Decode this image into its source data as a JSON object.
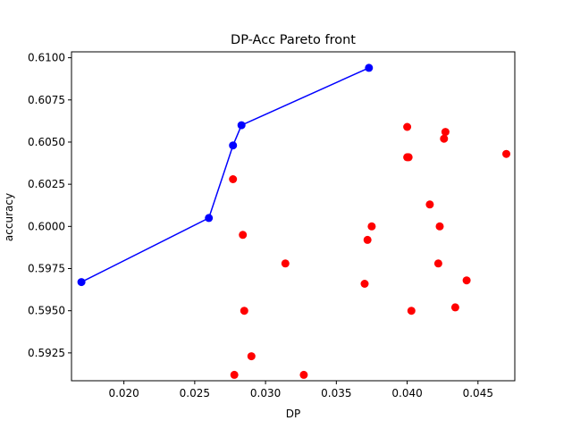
{
  "chart_data": {
    "type": "scatter",
    "title": "DP-Acc Pareto front",
    "xlabel": "DP",
    "ylabel": "accuracy",
    "xlim": [
      0.0163,
      0.0476
    ],
    "ylim": [
      0.59085,
      0.61035
    ],
    "x_ticks": [
      0.02,
      0.025,
      0.03,
      0.035,
      0.04,
      0.045
    ],
    "x_tick_labels": [
      "0.020",
      "0.025",
      "0.030",
      "0.035",
      "0.040",
      "0.045"
    ],
    "y_ticks": [
      0.5925,
      0.595,
      0.5975,
      0.6,
      0.6025,
      0.605,
      0.6075,
      0.61
    ],
    "y_tick_labels": [
      "0.5925",
      "0.5950",
      "0.5975",
      "0.6000",
      "0.6025",
      "0.6050",
      "0.6075",
      "0.6100"
    ],
    "grid": false,
    "series": [
      {
        "color": "#ff0000",
        "style": "markers",
        "points": [
          [
            0.0277,
            0.6028
          ],
          [
            0.0284,
            0.5995
          ],
          [
            0.0285,
            0.595
          ],
          [
            0.029,
            0.5923
          ],
          [
            0.0278,
            0.5912
          ],
          [
            0.0327,
            0.5912
          ],
          [
            0.0314,
            0.5978
          ],
          [
            0.037,
            0.5966
          ],
          [
            0.0372,
            0.5992
          ],
          [
            0.0375,
            0.6
          ],
          [
            0.04,
            0.6059
          ],
          [
            0.04,
            0.6041
          ],
          [
            0.0401,
            0.6041
          ],
          [
            0.0403,
            0.595
          ],
          [
            0.0416,
            0.6013
          ],
          [
            0.0422,
            0.5978
          ],
          [
            0.0423,
            0.6
          ],
          [
            0.0426,
            0.6052
          ],
          [
            0.0427,
            0.6056
          ],
          [
            0.0434,
            0.5952
          ],
          [
            0.0442,
            0.5968
          ],
          [
            0.047,
            0.6043
          ]
        ]
      },
      {
        "color": "#0000ff",
        "style": "line+markers",
        "points": [
          [
            0.017,
            0.5967
          ],
          [
            0.026,
            0.6005
          ],
          [
            0.0277,
            0.6048
          ],
          [
            0.0283,
            0.606
          ],
          [
            0.0373,
            0.6094
          ]
        ]
      }
    ]
  }
}
